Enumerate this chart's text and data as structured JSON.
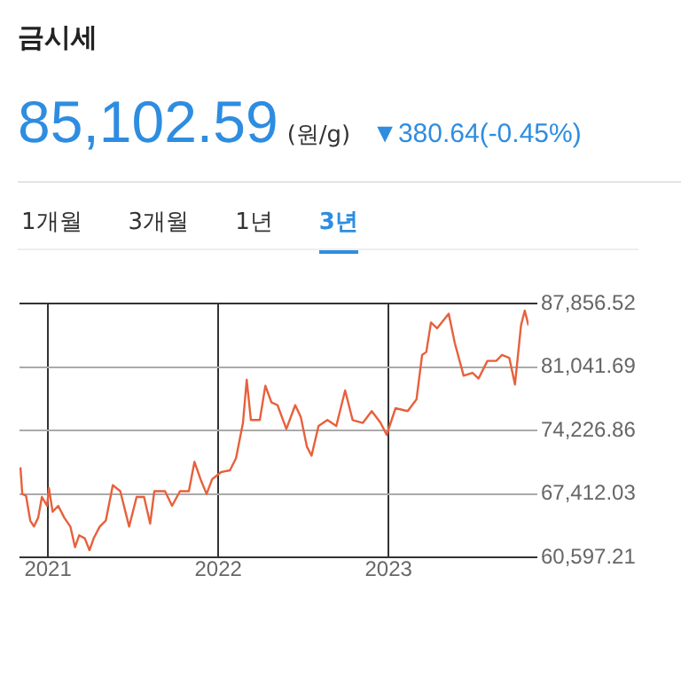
{
  "chart_data": {
    "type": "line",
    "title": "금시세",
    "subtitle": "85,102.59",
    "annotations": [
      "(원/g)",
      "▼380.64(-0.45%)",
      "1개월",
      "3개월",
      "1년",
      "3년"
    ],
    "x": [
      "2020-11-03",
      "2020-11-07",
      "2020-11-15",
      "2020-11-24",
      "2020-12-02",
      "2020-12-11",
      "2020-12-19",
      "2020-12-30",
      "2021-01-03",
      "2021-01-11",
      "2021-01-23",
      "2021-02-05",
      "2021-02-18",
      "2021-02-28",
      "2021-03-09",
      "2021-03-21",
      "2021-03-31",
      "2021-04-09",
      "2021-04-22",
      "2021-05-05",
      "2021-05-20",
      "2021-06-05",
      "2021-06-24",
      "2021-07-10",
      "2021-07-26",
      "2021-08-08",
      "2021-08-17",
      "2021-09-09",
      "2021-09-24",
      "2021-10-11",
      "2021-10-30",
      "2021-11-11",
      "2021-11-24",
      "2021-12-07",
      "2021-12-19",
      "2022-01-07",
      "2022-01-26",
      "2022-02-08",
      "2022-02-23",
      "2022-03-03",
      "2022-03-12",
      "2022-03-31",
      "2022-04-12",
      "2022-04-25",
      "2022-05-08",
      "2022-05-27",
      "2022-06-15",
      "2022-06-27",
      "2022-07-10",
      "2022-07-20",
      "2022-08-04",
      "2022-08-23",
      "2022-09-11",
      "2022-09-30",
      "2022-10-16",
      "2022-11-07",
      "2022-11-26",
      "2022-12-15",
      "2022-12-28",
      "2023-01-16",
      "2023-02-11",
      "2023-03-02",
      "2023-03-14",
      "2023-03-23",
      "2023-04-02",
      "2023-04-15",
      "2023-05-10",
      "2023-05-23",
      "2023-06-11",
      "2023-06-30",
      "2023-07-13",
      "2023-08-01",
      "2023-08-20",
      "2023-09-01",
      "2023-09-17",
      "2023-09-29",
      "2023-10-12",
      "2023-10-20",
      "2023-10-28"
    ],
    "series": [
      {
        "color": "#e8603c",
        "values": [
          70260,
          67400,
          67200,
          64550,
          63900,
          64850,
          67080,
          66130,
          68030,
          65490,
          66130,
          64850,
          63900,
          61690,
          62960,
          62640,
          61360,
          62640,
          63900,
          64550,
          68340,
          67700,
          63900,
          67080,
          67080,
          64220,
          67700,
          67700,
          66130,
          67700,
          67700,
          70850,
          68990,
          67400,
          68990,
          69750,
          69940,
          71220,
          75030,
          79660,
          75340,
          75340,
          79030,
          77240,
          76940,
          74380,
          76940,
          75660,
          72480,
          71520,
          74700,
          75340,
          74700,
          78520,
          75340,
          75030,
          76300,
          75030,
          73750,
          76610,
          76300,
          77570,
          82330,
          82650,
          85820,
          85190,
          86770,
          83610,
          80100,
          80420,
          79800,
          81700,
          81700,
          82330,
          82000,
          79150,
          85510,
          87100,
          85510
        ]
      }
    ],
    "xlim": [
      "2020-11-01",
      "2023-10-28"
    ],
    "xticks": [
      {
        "value": "2021-01-01",
        "label": "2021"
      },
      {
        "value": "2022-01-01",
        "label": "2022"
      },
      {
        "value": "2023-01-01",
        "label": "2023"
      }
    ],
    "ylim": [
      60597.21,
      87856.52
    ],
    "yticks": [
      {
        "value": 60597.21,
        "label": "60,597.21"
      },
      {
        "value": 67412.03,
        "label": "67,412.03"
      },
      {
        "value": 74226.86,
        "label": "74,226.86"
      },
      {
        "value": 81041.69,
        "label": "81,041.69"
      },
      {
        "value": 87856.52,
        "label": "87,856.52"
      }
    ],
    "grid": true,
    "legend": false,
    "marker": "none",
    "line_style": "solid"
  }
}
